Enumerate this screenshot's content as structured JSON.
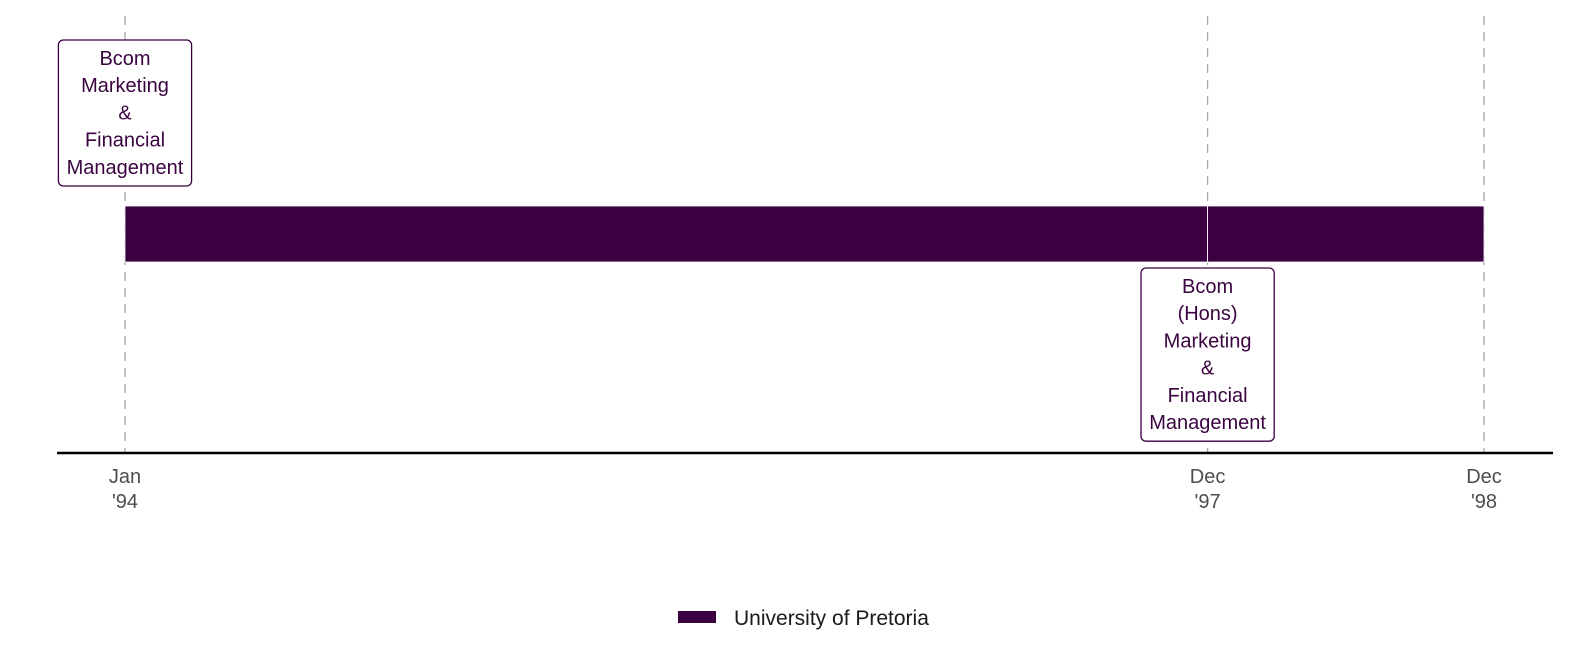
{
  "chart_data": {
    "type": "timeline",
    "x_range": [
      "1994-01",
      "1998-12"
    ],
    "grid": false,
    "legend_position": "bottom",
    "series": [
      {
        "name": "University of Pretoria",
        "color": "#3a0042",
        "segments": [
          {
            "start": "1994-01",
            "end": "1997-12"
          },
          {
            "start": "1997-12",
            "end": "1998-12"
          }
        ]
      }
    ],
    "events": [
      {
        "date": "1994-01",
        "lines": [
          "Bcom",
          "Marketing",
          "&",
          "Financial",
          "Management"
        ],
        "side": "above"
      },
      {
        "date": "1997-12",
        "lines": [
          "Bcom",
          "(Hons)",
          "Marketing",
          "&",
          "Financial",
          "Management"
        ],
        "side": "below"
      }
    ],
    "ticks": [
      {
        "date": "1994-01",
        "lines": [
          "Jan",
          "'94"
        ]
      },
      {
        "date": "1997-12",
        "lines": [
          "Dec",
          "'97"
        ]
      },
      {
        "date": "1998-12",
        "lines": [
          "Dec",
          "'98"
        ]
      }
    ]
  }
}
